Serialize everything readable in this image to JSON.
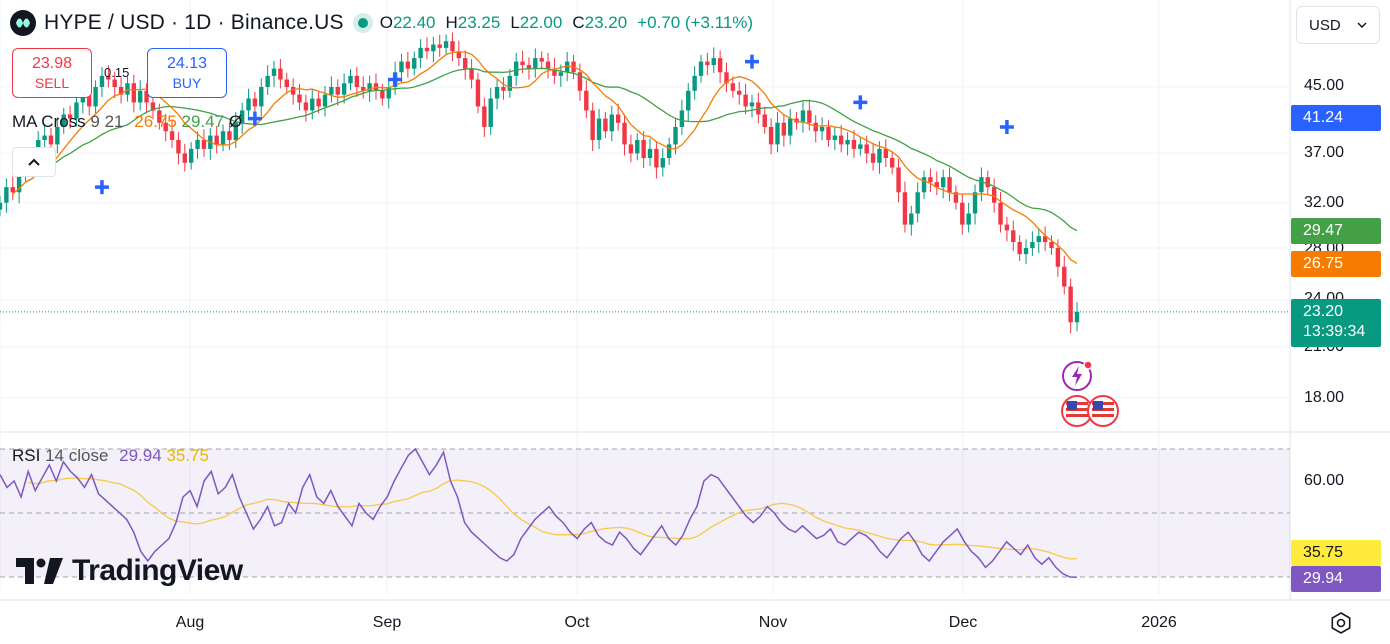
{
  "header": {
    "symbol": "HYPE / USD · 1D · Binance.US",
    "open_key": "O",
    "open": "22.40",
    "high_key": "H",
    "high": "23.25",
    "low_key": "L",
    "low": "22.00",
    "close_key": "C",
    "close": "23.20",
    "change": "+0.70 (+3.11%)"
  },
  "trade": {
    "sell_price": "23.98",
    "sell_label": "SELL",
    "spread": "0.15",
    "buy_price": "24.13",
    "buy_label": "BUY"
  },
  "currency_select": {
    "value": "USD"
  },
  "ma_legend": {
    "name": "MA Cross",
    "params": "9 21",
    "fast": "26.75",
    "slow": "29.47",
    "extra": "Ø"
  },
  "rsi_legend": {
    "name": "RSI",
    "params": "14 close",
    "rsi": "29.94",
    "ma": "35.75"
  },
  "brand": {
    "name": "TradingView"
  },
  "price_axis": {
    "ticks": [
      "45.00",
      "37.00",
      "32.00",
      "28.00",
      "24.00",
      "21.00",
      "18.00"
    ],
    "labels": {
      "slow_ma": {
        "value": "41.24",
        "color": "#2962ff"
      },
      "ma_slow": {
        "value": "29.47",
        "color": "#43a047"
      },
      "ma_fast": {
        "value": "26.75",
        "color": "#f57c00"
      },
      "last_price": {
        "value": "23.20",
        "countdown": "13:39:34",
        "color": "#089981"
      }
    }
  },
  "rsi_axis": {
    "ticks": [
      "60.00"
    ],
    "labels": {
      "rsi_ma": {
        "value": "35.75",
        "color": "#ffeb3b"
      },
      "rsi": {
        "value": "29.94",
        "color": "#7e57c2"
      }
    }
  },
  "time_axis": {
    "ticks": [
      "Aug",
      "Sep",
      "Oct",
      "Nov",
      "Dec",
      "2026"
    ]
  },
  "colors": {
    "up": "#089981",
    "down": "#f23645",
    "ma_fast": "#f57c00",
    "ma_slow": "#43a047",
    "rsi": "#7e57c2",
    "rsi_ma": "#f7c948"
  },
  "chart_data": {
    "type": "candlestick",
    "title": "HYPE / USD · 1D · Binance.US",
    "x_range": [
      "2025-07-02",
      "2025-12-20"
    ],
    "ylim": [
      17,
      52
    ],
    "y_scale": "log",
    "grid": true,
    "series": [
      {
        "name": "price",
        "close": [
          32.0,
          33.5,
          33.0,
          35.0,
          36.5,
          36.0,
          38.5,
          39.0,
          38.0,
          40.0,
          41.5,
          41.0,
          43.0,
          44.0,
          42.5,
          45.0,
          46.5,
          46.0,
          45.0,
          44.0,
          45.5,
          43.0,
          44.5,
          43.0,
          42.0,
          40.5,
          39.5,
          38.5,
          37.0,
          36.0,
          37.5,
          38.5,
          37.5,
          39.0,
          38.0,
          39.5,
          38.5,
          40.5,
          42.0,
          43.5,
          42.5,
          45.0,
          46.5,
          47.5,
          46.0,
          45.0,
          44.0,
          43.0,
          42.0,
          43.5,
          42.5,
          44.0,
          45.0,
          44.0,
          45.5,
          46.5,
          45.0,
          44.5,
          45.5,
          44.5,
          43.5,
          45.0,
          47.0,
          48.5,
          47.5,
          49.0,
          50.5,
          50.0,
          51.0,
          50.5,
          51.5,
          50.0,
          49.0,
          47.5,
          46.0,
          42.5,
          40.0,
          43.5,
          45.0,
          44.5,
          46.5,
          48.5,
          48.0,
          47.5,
          49.0,
          48.5,
          47.5,
          46.5,
          47.0,
          48.5,
          47.0,
          44.5,
          42.0,
          38.5,
          41.0,
          39.5,
          41.5,
          40.5,
          38.0,
          37.0,
          38.5,
          36.5,
          37.5,
          35.5,
          36.5,
          38.0,
          40.0,
          42.0,
          44.5,
          46.5,
          48.5,
          48.0,
          49.0,
          47.0,
          45.5,
          44.5,
          44.0,
          42.5,
          43.0,
          41.5,
          40.0,
          38.0,
          40.5,
          39.0,
          41.0,
          40.5,
          42.0,
          40.5,
          39.5,
          40.0,
          38.5,
          39.0,
          38.0,
          38.5,
          37.5,
          38.0,
          37.0,
          36.0,
          37.5,
          36.5,
          35.5,
          33.0,
          30.0,
          31.0,
          33.0,
          34.5,
          34.0,
          33.5,
          34.5,
          33.0,
          32.0,
          30.0,
          31.0,
          33.0,
          34.5,
          33.5,
          32.0,
          30.0,
          29.5,
          28.5,
          27.5,
          28.0,
          28.5,
          29.0,
          28.5,
          28.0,
          26.5,
          25.0,
          22.5,
          23.2
        ]
      },
      {
        "name": "MA 9",
        "last": 26.75
      },
      {
        "name": "MA 21",
        "last": 29.47
      }
    ],
    "rsi": {
      "name": "RSI 14 close",
      "ylim": [
        20,
        80
      ],
      "values": [
        62,
        58,
        60,
        55,
        63,
        57,
        61,
        65,
        60,
        66,
        63,
        61,
        58,
        62,
        56,
        54,
        52,
        50,
        48,
        44,
        38,
        35,
        38,
        40,
        42,
        47,
        55,
        57,
        52,
        60,
        63,
        56,
        58,
        62,
        55,
        50,
        45,
        48,
        52,
        46,
        47,
        53,
        50,
        58,
        62,
        55,
        53,
        57,
        52,
        49,
        46,
        53,
        50,
        48,
        52,
        55,
        60,
        64,
        68,
        70,
        66,
        62,
        65,
        69,
        60,
        55,
        47,
        44,
        42,
        40,
        38,
        36,
        35,
        37,
        42,
        45,
        48,
        50,
        52,
        49,
        47,
        44,
        42,
        45,
        47,
        43,
        41,
        40,
        44,
        42,
        39,
        37,
        40,
        43,
        46,
        42,
        40,
        43,
        48,
        52,
        60,
        62,
        61,
        58,
        55,
        52,
        49,
        47,
        49,
        52,
        50,
        47,
        45,
        44,
        46,
        44,
        42,
        43,
        45,
        41,
        40,
        42,
        44,
        43,
        41,
        38,
        36,
        39,
        42,
        44,
        41,
        37,
        35,
        38,
        41,
        43,
        45,
        41,
        38,
        36,
        33,
        35,
        38,
        41,
        39,
        37,
        40,
        36,
        34,
        36,
        33,
        31,
        30,
        29.94
      ],
      "ma_last": 35.75,
      "levels": [
        70,
        50,
        30
      ]
    }
  }
}
